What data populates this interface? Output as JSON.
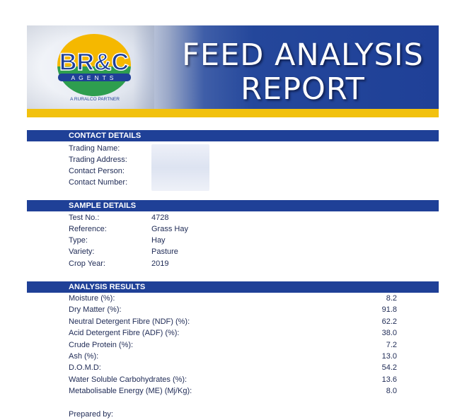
{
  "banner": {
    "logo_main": "BR&C",
    "logo_sub": "AGENTS",
    "logo_tagline": "A RURALCO PARTNER",
    "title_line1": "FEED ANALYSIS",
    "title_line2": "REPORT"
  },
  "contact": {
    "heading": "CONTACT DETAILS",
    "rows": [
      {
        "label": "Trading Name:",
        "value": ""
      },
      {
        "label": "Trading Address:",
        "value": ""
      },
      {
        "label": "Contact Person:",
        "value": ""
      },
      {
        "label": "Contact Number:",
        "value": ""
      }
    ]
  },
  "sample": {
    "heading": "SAMPLE DETAILS",
    "rows": [
      {
        "label": "Test No.:",
        "value": "4728"
      },
      {
        "label": "Reference:",
        "value": "Grass Hay"
      },
      {
        "label": "Type:",
        "value": "Hay"
      },
      {
        "label": "Variety:",
        "value": "Pasture"
      },
      {
        "label": "Crop Year:",
        "value": "2019"
      }
    ]
  },
  "analysis": {
    "heading": "ANALYSIS RESULTS",
    "rows": [
      {
        "label": "Moisture (%):",
        "value": "8.2"
      },
      {
        "label": "Dry Matter (%):",
        "value": "91.8"
      },
      {
        "label": "Neutral Detergent Fibre (NDF) (%):",
        "value": "62.2"
      },
      {
        "label": "Acid Detergent Fibre (ADF) (%):",
        "value": "38.0"
      },
      {
        "label": "Crude Protein (%):",
        "value": "7.2"
      },
      {
        "label": "Ash (%):",
        "value": "13.0"
      },
      {
        "label": "D.O.M.D:",
        "value": "54.2"
      },
      {
        "label": "Water Soluble Carbohydrates (%):",
        "value": "13.6"
      },
      {
        "label": "Metabolisable Energy (ME) (Mj/Kg):",
        "value": "8.0"
      }
    ]
  },
  "footer": {
    "prepared_by": "Prepared by:"
  },
  "colors": {
    "brand_blue": "#1f4097",
    "brand_yellow": "#f2c10e",
    "logo_green": "#2e9e4f",
    "logo_red": "#c8392f"
  }
}
